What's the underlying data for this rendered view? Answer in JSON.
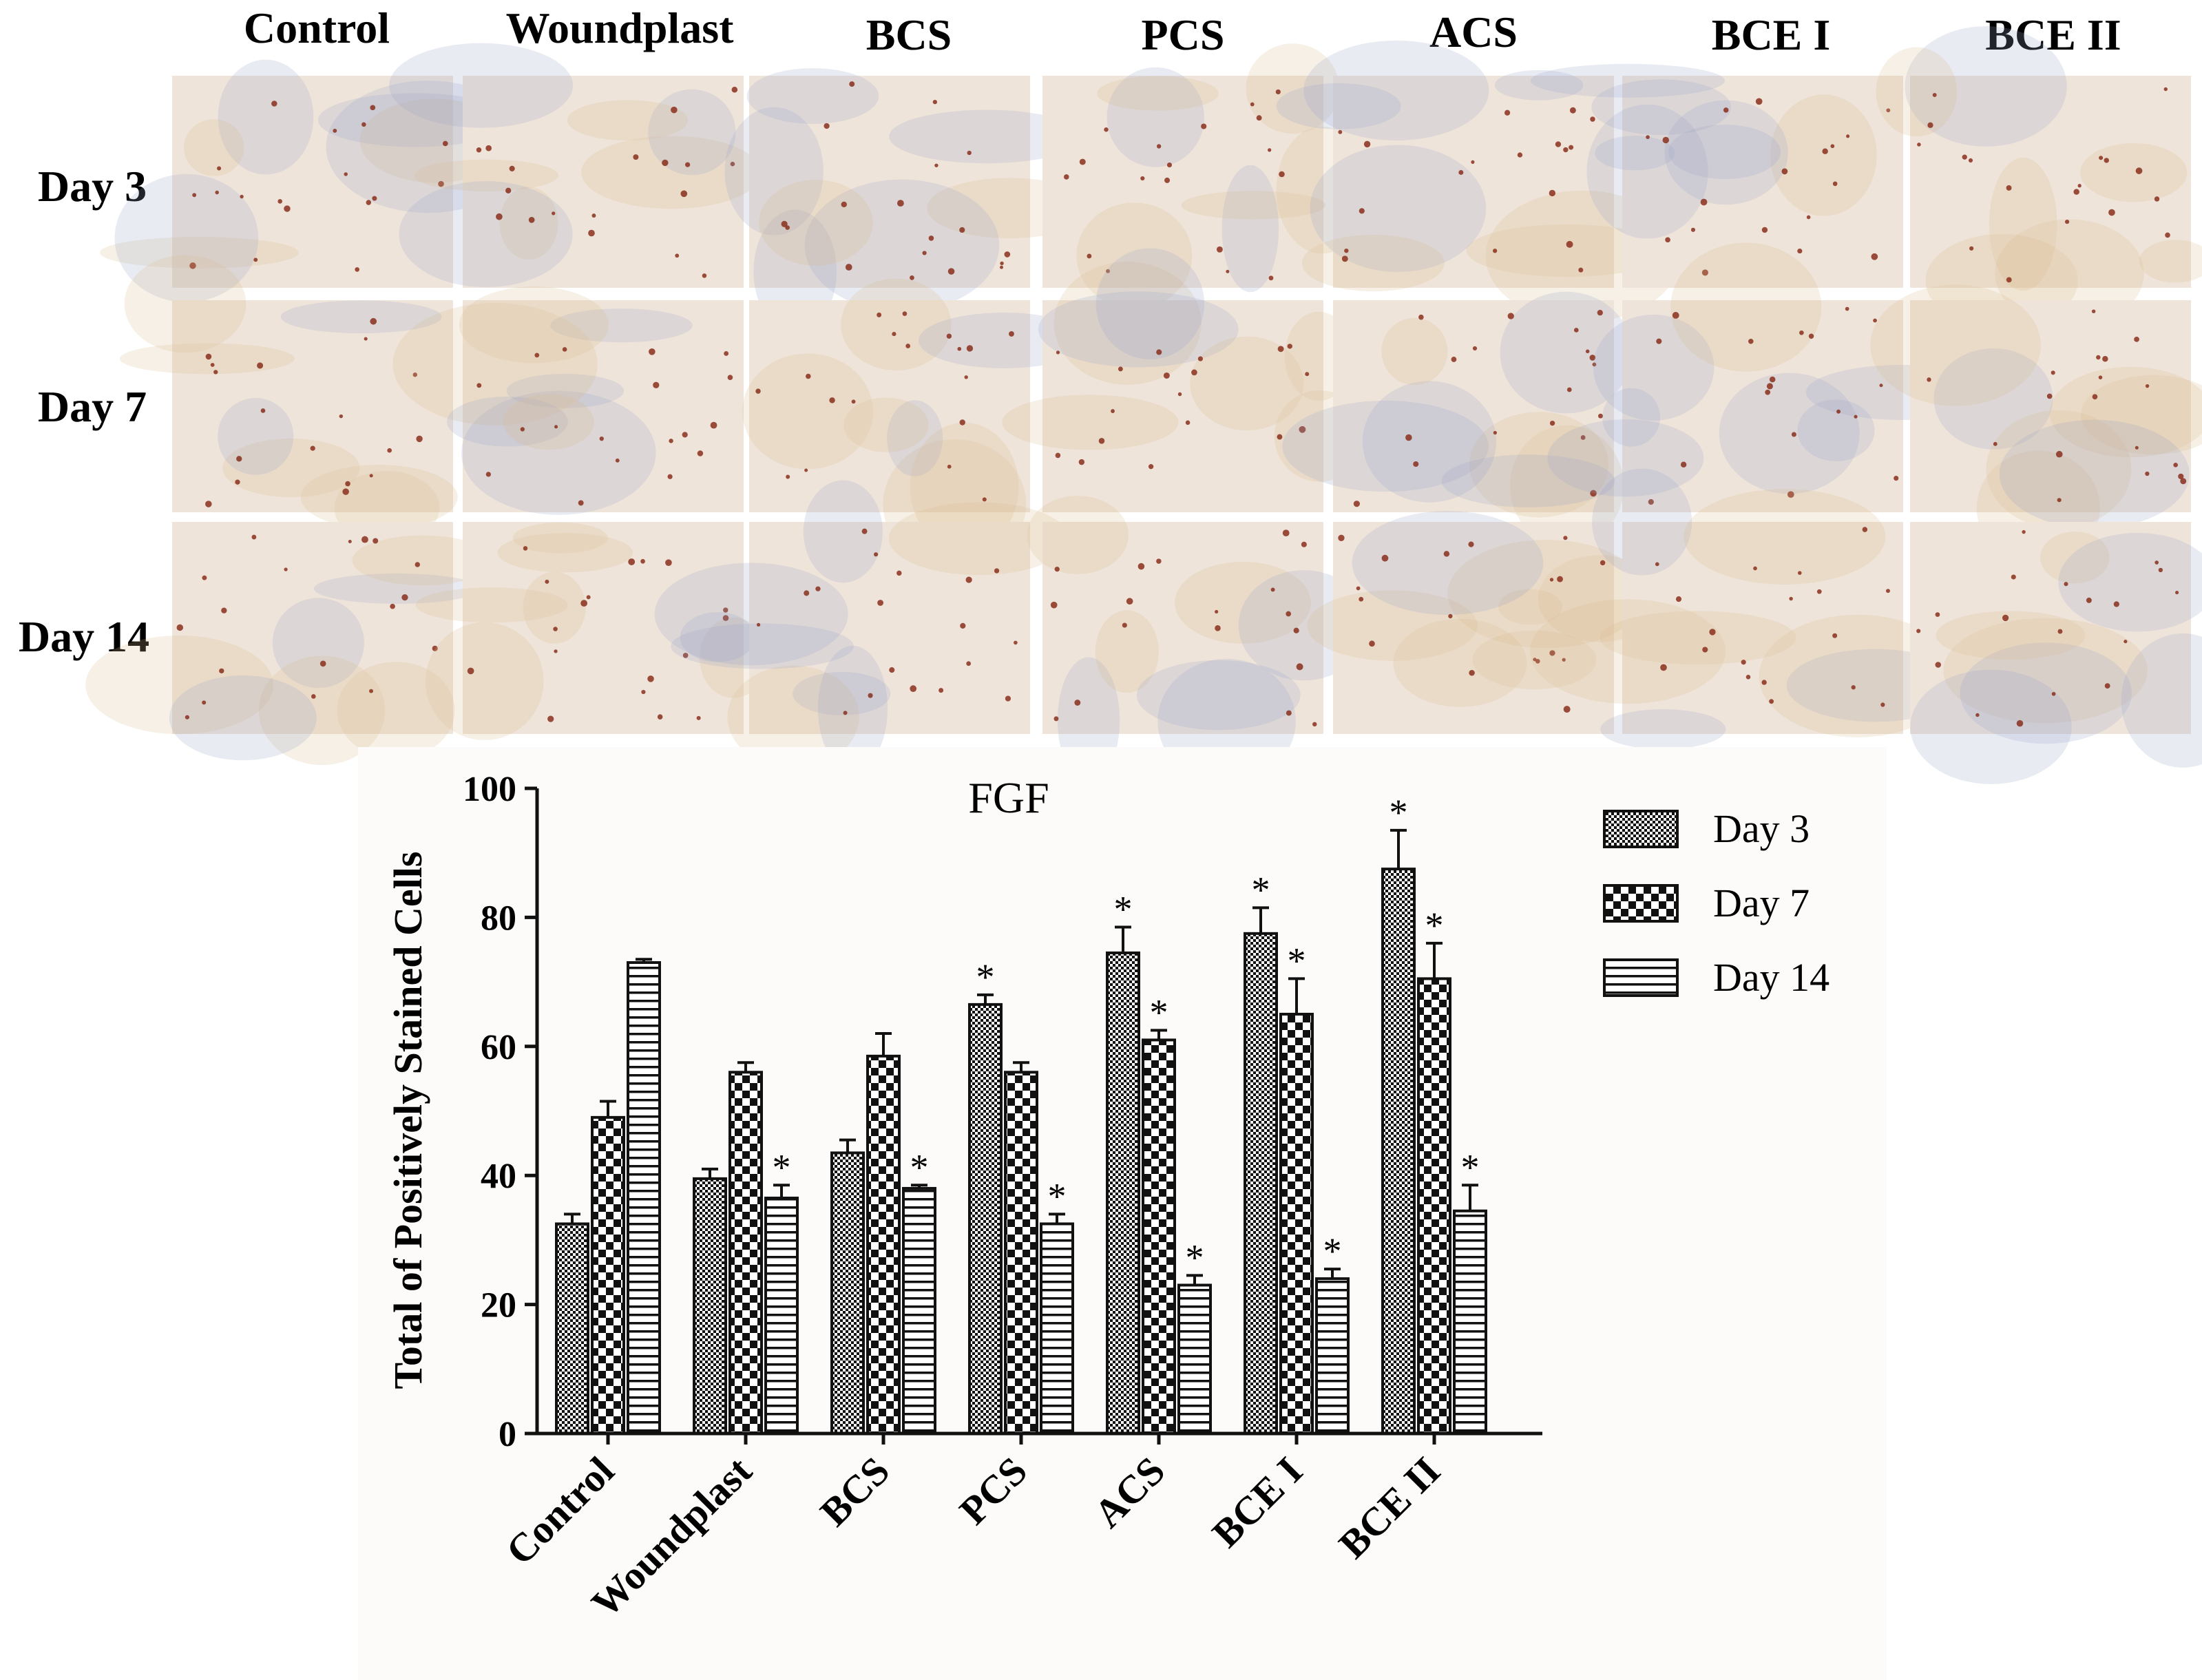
{
  "micrograph_panel": {
    "column_labels": [
      "Control",
      "Woundplast",
      "BCS",
      "PCS",
      "ACS",
      "BCE I",
      "BCE II"
    ],
    "row_labels": [
      "Day 3",
      "Day 7",
      "Day 14"
    ],
    "colors": {
      "tissue_background": "#efe4da",
      "stroma_tan": "#d9b98c",
      "nuclei_blue": "#9aa6c8",
      "positive_cells": "#8a2f1c"
    }
  },
  "chart_data": {
    "type": "bar",
    "title": "FGF",
    "xlabel": "",
    "ylabel": "Total of Positively Stained Cells",
    "ylim": [
      0,
      100
    ],
    "yticks": [
      0,
      20,
      40,
      60,
      80,
      100
    ],
    "grid": false,
    "legend_position": "top-right",
    "categories": [
      "Control",
      "Woundplast",
      "BCS",
      "PCS",
      "ACS",
      "BCE I",
      "BCE II"
    ],
    "series": [
      {
        "name": "Day 3",
        "pattern": "fine-checker",
        "values": [
          32.5,
          39.5,
          43.5,
          66.5,
          74.5,
          77.5,
          87.5
        ],
        "errors": [
          1.5,
          1.5,
          2.0,
          1.5,
          4.0,
          4.0,
          6.0
        ],
        "significant": [
          false,
          false,
          false,
          true,
          true,
          true,
          true
        ]
      },
      {
        "name": "Day 7",
        "pattern": "coarse-checker",
        "values": [
          49.0,
          56.0,
          58.5,
          56.0,
          61.0,
          65.0,
          70.5
        ],
        "errors": [
          2.5,
          1.5,
          3.5,
          1.5,
          1.5,
          5.5,
          5.5
        ],
        "significant": [
          false,
          false,
          false,
          false,
          true,
          true,
          true
        ]
      },
      {
        "name": "Day 14",
        "pattern": "horizontal-lines",
        "values": [
          73.0,
          36.5,
          38.0,
          32.5,
          23.0,
          24.0,
          34.5
        ],
        "errors": [
          0.5,
          2.0,
          0.5,
          1.5,
          1.5,
          1.5,
          4.0
        ],
        "significant": [
          false,
          true,
          true,
          true,
          true,
          true,
          true
        ]
      }
    ],
    "significance_marker": "*"
  }
}
